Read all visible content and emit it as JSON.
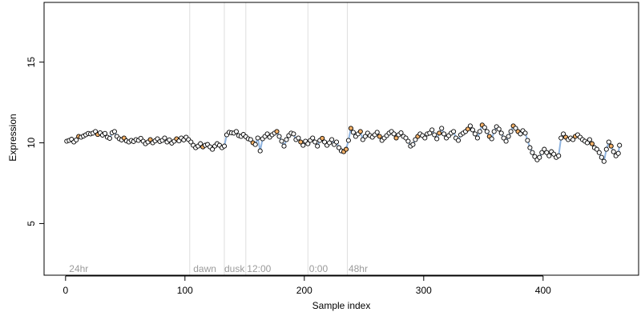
{
  "chart_data": {
    "type": "scatter",
    "title": "",
    "xlabel": "Sample index",
    "ylabel": "Expression",
    "xlim": [
      -18,
      480
    ],
    "ylim": [
      1.8,
      18.7
    ],
    "x_ticks": [
      0,
      100,
      200,
      300,
      400
    ],
    "y_ticks": [
      5,
      10,
      15
    ],
    "grid": false,
    "legend": "none",
    "colors": {
      "point_fill_default": "#ffffff",
      "point_fill_highlight": "#f5b26a",
      "line": "#8fb4e0",
      "vline": "#dedede",
      "annotation": "#9a9a9a"
    },
    "annotations": [
      {
        "label": "24hr",
        "x": 3,
        "y": 2.0
      },
      {
        "label": "dawn",
        "x": 107,
        "y": 2.0
      },
      {
        "label": "dusk",
        "x": 133,
        "y": 2.0
      },
      {
        "label": "12:00",
        "x": 152,
        "y": 2.0
      },
      {
        "label": "0:00",
        "x": 204,
        "y": 2.0
      },
      {
        "label": "48hr",
        "x": 237,
        "y": 2.0
      }
    ],
    "vlines": [
      104,
      133,
      151,
      203,
      236
    ],
    "series": [
      {
        "values": [
          [
            1,
            10.1
          ],
          [
            3,
            10.15
          ],
          [
            5,
            10.22
          ],
          [
            7,
            10.05
          ],
          [
            9,
            10.18
          ],
          [
            11,
            10.4
          ],
          [
            13,
            10.35
          ],
          [
            15,
            10.42
          ],
          [
            17,
            10.5
          ],
          [
            19,
            10.58
          ],
          [
            21,
            10.55
          ],
          [
            23,
            10.6
          ],
          [
            25,
            10.7
          ],
          [
            27,
            10.52
          ],
          [
            29,
            10.62
          ],
          [
            31,
            10.48
          ],
          [
            33,
            10.58
          ],
          [
            35,
            10.35
          ],
          [
            37,
            10.28
          ],
          [
            39,
            10.62
          ],
          [
            41,
            10.7
          ],
          [
            43,
            10.4
          ],
          [
            45,
            10.25
          ],
          [
            47,
            10.18
          ],
          [
            49,
            10.3
          ],
          [
            51,
            10.12
          ],
          [
            53,
            10.05
          ],
          [
            55,
            10.15
          ],
          [
            57,
            10.08
          ],
          [
            59,
            10.2
          ],
          [
            61,
            10.15
          ],
          [
            63,
            10.28
          ],
          [
            65,
            10.1
          ],
          [
            67,
            9.95
          ],
          [
            69,
            10.05
          ],
          [
            71,
            10.2
          ],
          [
            73,
            10.0
          ],
          [
            75,
            10.12
          ],
          [
            77,
            10.25
          ],
          [
            79,
            10.08
          ],
          [
            81,
            10.15
          ],
          [
            83,
            10.3
          ],
          [
            85,
            10.05
          ],
          [
            87,
            10.18
          ],
          [
            89,
            9.98
          ],
          [
            91,
            10.1
          ],
          [
            93,
            10.25
          ],
          [
            95,
            10.12
          ],
          [
            97,
            10.3
          ],
          [
            99,
            10.18
          ],
          [
            101,
            10.35
          ],
          [
            103,
            10.2
          ],
          [
            105,
            10.05
          ],
          [
            107,
            9.85
          ],
          [
            109,
            9.7
          ],
          [
            111,
            9.8
          ],
          [
            113,
            9.95
          ],
          [
            115,
            9.75
          ],
          [
            117,
            9.85
          ],
          [
            119,
            9.9
          ],
          [
            121,
            9.75
          ],
          [
            123,
            9.6
          ],
          [
            125,
            9.8
          ],
          [
            127,
            9.95
          ],
          [
            129,
            9.85
          ],
          [
            131,
            9.7
          ],
          [
            133,
            9.8
          ],
          [
            135,
            10.5
          ],
          [
            137,
            10.65
          ],
          [
            139,
            10.62
          ],
          [
            141,
            10.6
          ],
          [
            143,
            10.7
          ],
          [
            145,
            10.45
          ],
          [
            147,
            10.4
          ],
          [
            149,
            10.52
          ],
          [
            151,
            10.38
          ],
          [
            153,
            10.25
          ],
          [
            155,
            10.2
          ],
          [
            157,
            10.0
          ],
          [
            159,
            9.9
          ],
          [
            161,
            10.3
          ],
          [
            163,
            9.5
          ],
          [
            165,
            10.25
          ],
          [
            167,
            10.4
          ],
          [
            169,
            10.55
          ],
          [
            171,
            10.35
          ],
          [
            173,
            10.5
          ],
          [
            175,
            10.6
          ],
          [
            177,
            10.7
          ],
          [
            179,
            10.4
          ],
          [
            181,
            10.1
          ],
          [
            183,
            9.8
          ],
          [
            185,
            10.2
          ],
          [
            187,
            10.45
          ],
          [
            189,
            10.6
          ],
          [
            191,
            10.55
          ],
          [
            193,
            10.2
          ],
          [
            195,
            10.3
          ],
          [
            197,
            10.05
          ],
          [
            199,
            9.85
          ],
          [
            201,
            10.1
          ],
          [
            203,
            9.95
          ],
          [
            205,
            10.15
          ],
          [
            207,
            10.3
          ],
          [
            209,
            10.05
          ],
          [
            211,
            9.8
          ],
          [
            213,
            10.15
          ],
          [
            215,
            10.28
          ],
          [
            217,
            10.05
          ],
          [
            219,
            9.85
          ],
          [
            221,
            10.0
          ],
          [
            223,
            10.2
          ],
          [
            225,
            9.9
          ],
          [
            227,
            10.05
          ],
          [
            229,
            9.7
          ],
          [
            231,
            9.5
          ],
          [
            233,
            9.45
          ],
          [
            235,
            9.6
          ],
          [
            237,
            10.15
          ],
          [
            239,
            10.9
          ],
          [
            241,
            10.65
          ],
          [
            243,
            10.4
          ],
          [
            245,
            10.55
          ],
          [
            247,
            10.7
          ],
          [
            249,
            10.2
          ],
          [
            251,
            10.4
          ],
          [
            253,
            10.6
          ],
          [
            255,
            10.45
          ],
          [
            257,
            10.35
          ],
          [
            259,
            10.5
          ],
          [
            261,
            10.65
          ],
          [
            263,
            10.4
          ],
          [
            265,
            10.15
          ],
          [
            267,
            10.3
          ],
          [
            269,
            10.45
          ],
          [
            271,
            10.6
          ],
          [
            273,
            10.7
          ],
          [
            275,
            10.55
          ],
          [
            277,
            10.3
          ],
          [
            279,
            10.5
          ],
          [
            281,
            10.62
          ],
          [
            283,
            10.4
          ],
          [
            285,
            10.3
          ],
          [
            287,
            10.1
          ],
          [
            289,
            9.8
          ],
          [
            291,
            9.9
          ],
          [
            293,
            10.2
          ],
          [
            295,
            10.4
          ],
          [
            297,
            10.55
          ],
          [
            299,
            10.45
          ],
          [
            301,
            10.3
          ],
          [
            303,
            10.55
          ],
          [
            305,
            10.6
          ],
          [
            307,
            10.8
          ],
          [
            309,
            10.5
          ],
          [
            311,
            10.25
          ],
          [
            313,
            10.6
          ],
          [
            315,
            10.9
          ],
          [
            317,
            10.55
          ],
          [
            319,
            10.3
          ],
          [
            321,
            10.45
          ],
          [
            323,
            10.6
          ],
          [
            325,
            10.7
          ],
          [
            327,
            10.3
          ],
          [
            329,
            10.15
          ],
          [
            331,
            10.5
          ],
          [
            333,
            10.6
          ],
          [
            335,
            10.7
          ],
          [
            337,
            10.85
          ],
          [
            339,
            11.05
          ],
          [
            341,
            10.8
          ],
          [
            343,
            10.55
          ],
          [
            345,
            10.3
          ],
          [
            347,
            10.7
          ],
          [
            349,
            11.1
          ],
          [
            351,
            10.95
          ],
          [
            353,
            10.7
          ],
          [
            355,
            10.4
          ],
          [
            357,
            10.25
          ],
          [
            359,
            10.7
          ],
          [
            361,
            11.0
          ],
          [
            363,
            10.85
          ],
          [
            365,
            10.6
          ],
          [
            367,
            10.3
          ],
          [
            369,
            10.1
          ],
          [
            371,
            10.4
          ],
          [
            373,
            10.7
          ],
          [
            375,
            11.05
          ],
          [
            377,
            10.9
          ],
          [
            379,
            10.7
          ],
          [
            381,
            10.55
          ],
          [
            383,
            10.75
          ],
          [
            385,
            10.6
          ],
          [
            387,
            10.15
          ],
          [
            389,
            9.7
          ],
          [
            391,
            9.4
          ],
          [
            393,
            9.15
          ],
          [
            395,
            8.95
          ],
          [
            397,
            9.1
          ],
          [
            399,
            9.4
          ],
          [
            401,
            9.6
          ],
          [
            403,
            9.4
          ],
          [
            405,
            9.2
          ],
          [
            407,
            9.45
          ],
          [
            409,
            9.3
          ],
          [
            411,
            9.1
          ],
          [
            413,
            9.2
          ],
          [
            415,
            10.3
          ],
          [
            417,
            10.55
          ],
          [
            419,
            10.35
          ],
          [
            421,
            10.2
          ],
          [
            423,
            10.3
          ],
          [
            425,
            10.2
          ],
          [
            427,
            10.4
          ],
          [
            429,
            10.5
          ],
          [
            431,
            10.35
          ],
          [
            433,
            10.2
          ],
          [
            435,
            10.1
          ],
          [
            437,
            10.0
          ],
          [
            439,
            10.2
          ],
          [
            441,
            9.95
          ],
          [
            443,
            9.7
          ],
          [
            445,
            9.6
          ],
          [
            447,
            9.4
          ],
          [
            449,
            9.1
          ],
          [
            451,
            8.85
          ],
          [
            453,
            9.6
          ],
          [
            455,
            10.05
          ],
          [
            457,
            9.8
          ],
          [
            459,
            9.45
          ],
          [
            461,
            9.2
          ],
          [
            463,
            9.35
          ],
          [
            464,
            9.85
          ]
        ],
        "highlight_x": [
          11,
          27,
          49,
          71,
          93,
          115,
          157,
          177,
          197,
          215,
          233,
          235,
          239,
          247,
          263,
          277,
          295,
          313,
          337,
          349,
          355,
          375,
          379,
          419,
          427,
          441,
          457
        ]
      }
    ]
  }
}
